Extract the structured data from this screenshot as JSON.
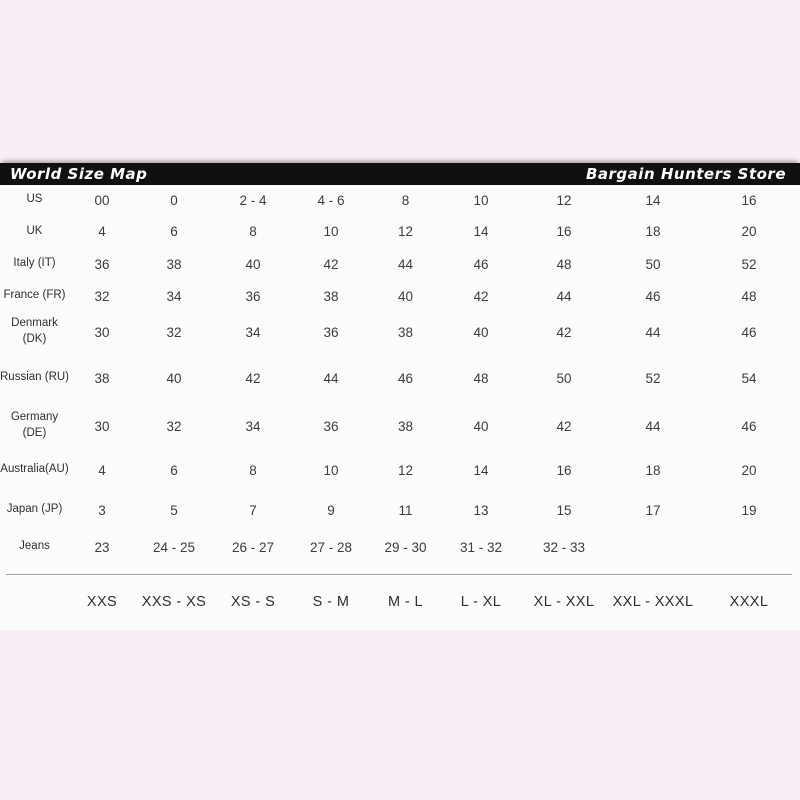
{
  "colors": {
    "background": "#f7edf4",
    "panel": "#fdfcfc",
    "header_bar": "#101010",
    "header_text": "#ffffff",
    "table_text": "#3c3c3c"
  },
  "header": {
    "left_title": "World Size Map",
    "right_title": "Bargain Hunters Store"
  },
  "table": {
    "rows": [
      {
        "label": "US",
        "label2": "",
        "values": [
          "00",
          "0",
          "2 - 4",
          "4 - 6",
          "8",
          "10",
          "12",
          "14",
          "16"
        ]
      },
      {
        "label": "UK",
        "label2": "",
        "values": [
          "4",
          "6",
          "8",
          "10",
          "12",
          "14",
          "16",
          "18",
          "20"
        ]
      },
      {
        "label": "Italy (IT)",
        "label2": "",
        "values": [
          "36",
          "38",
          "40",
          "42",
          "44",
          "46",
          "48",
          "50",
          "52"
        ]
      },
      {
        "label": "France (FR)",
        "label2": "",
        "values": [
          "32",
          "34",
          "36",
          "38",
          "40",
          "42",
          "44",
          "46",
          "48"
        ]
      },
      {
        "label": "Denmark",
        "label2": "(DK)",
        "values": [
          "30",
          "32",
          "34",
          "36",
          "38",
          "40",
          "42",
          "44",
          "46"
        ]
      },
      {
        "label": "Russian (RU)",
        "label2": "",
        "values": [
          "38",
          "40",
          "42",
          "44",
          "46",
          "48",
          "50",
          "52",
          "54"
        ]
      },
      {
        "label": "Germany",
        "label2": "(DE)",
        "values": [
          "30",
          "32",
          "34",
          "36",
          "38",
          "40",
          "42",
          "44",
          "46"
        ]
      },
      {
        "label": "Australia(AU)",
        "label2": "",
        "values": [
          "4",
          "6",
          "8",
          "10",
          "12",
          "14",
          "16",
          "18",
          "20"
        ]
      },
      {
        "label": "Japan (JP)",
        "label2": "",
        "values": [
          "3",
          "5",
          "7",
          "9",
          "11",
          "13",
          "15",
          "17",
          "19"
        ]
      },
      {
        "label": "Jeans",
        "label2": "",
        "values": [
          "23",
          "24 - 25",
          "26 - 27",
          "27 - 28",
          "29 - 30",
          "31 - 32",
          "32 - 33",
          "",
          ""
        ]
      }
    ],
    "footer_sizes": [
      "XXS",
      "XXS - XS",
      "XS - S",
      "S - M",
      "M - L",
      "L - XL",
      "XL - XXL",
      "XXL - XXXL",
      "XXXL"
    ]
  }
}
